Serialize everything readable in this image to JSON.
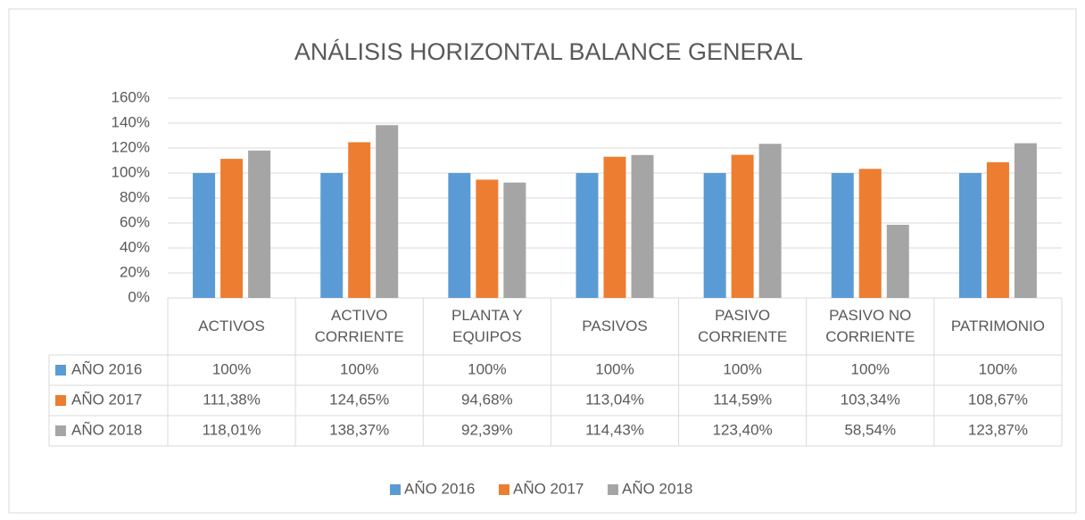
{
  "chart_data": {
    "type": "bar",
    "title": "ANÁLISIS HORIZONTAL BALANCE GENERAL",
    "categories": [
      "ACTIVOS",
      "ACTIVO CORRIENTE",
      "PLANTA Y EQUIPOS",
      "PASIVOS",
      "PASIVO CORRIENTE",
      "PASIVO NO CORRIENTE",
      "PATRIMONIO"
    ],
    "series": [
      {
        "name": "AÑO 2016",
        "color": "#5b9bd5",
        "values": [
          100,
          100,
          100,
          100,
          100,
          100,
          100
        ],
        "value_labels": [
          "100%",
          "100%",
          "100%",
          "100%",
          "100%",
          "100%",
          "100%"
        ]
      },
      {
        "name": "AÑO 2017",
        "color": "#ed7d31",
        "values": [
          111.38,
          124.65,
          94.68,
          113.04,
          114.59,
          103.34,
          108.67
        ],
        "value_labels": [
          "111,38%",
          "124,65%",
          "94,68%",
          "113,04%",
          "114,59%",
          "103,34%",
          "108,67%"
        ]
      },
      {
        "name": "AÑO 2018",
        "color": "#a5a5a5",
        "values": [
          118.01,
          138.37,
          92.39,
          114.43,
          123.4,
          58.54,
          123.87
        ],
        "value_labels": [
          "118,01%",
          "138,37%",
          "92,39%",
          "114,43%",
          "123,40%",
          "58,54%",
          "123,87%"
        ]
      }
    ],
    "ylim": [
      0,
      160
    ],
    "yticks": [
      {
        "value": 0,
        "label": "0%"
      },
      {
        "value": 20,
        "label": "20%"
      },
      {
        "value": 40,
        "label": "40%"
      },
      {
        "value": 60,
        "label": "60%"
      },
      {
        "value": 80,
        "label": "80%"
      },
      {
        "value": 100,
        "label": "100%"
      },
      {
        "value": 120,
        "label": "120%"
      },
      {
        "value": 140,
        "label": "140%"
      },
      {
        "value": 160,
        "label": "160%"
      }
    ],
    "grid": true,
    "legend": "bottom",
    "data_table": true
  }
}
